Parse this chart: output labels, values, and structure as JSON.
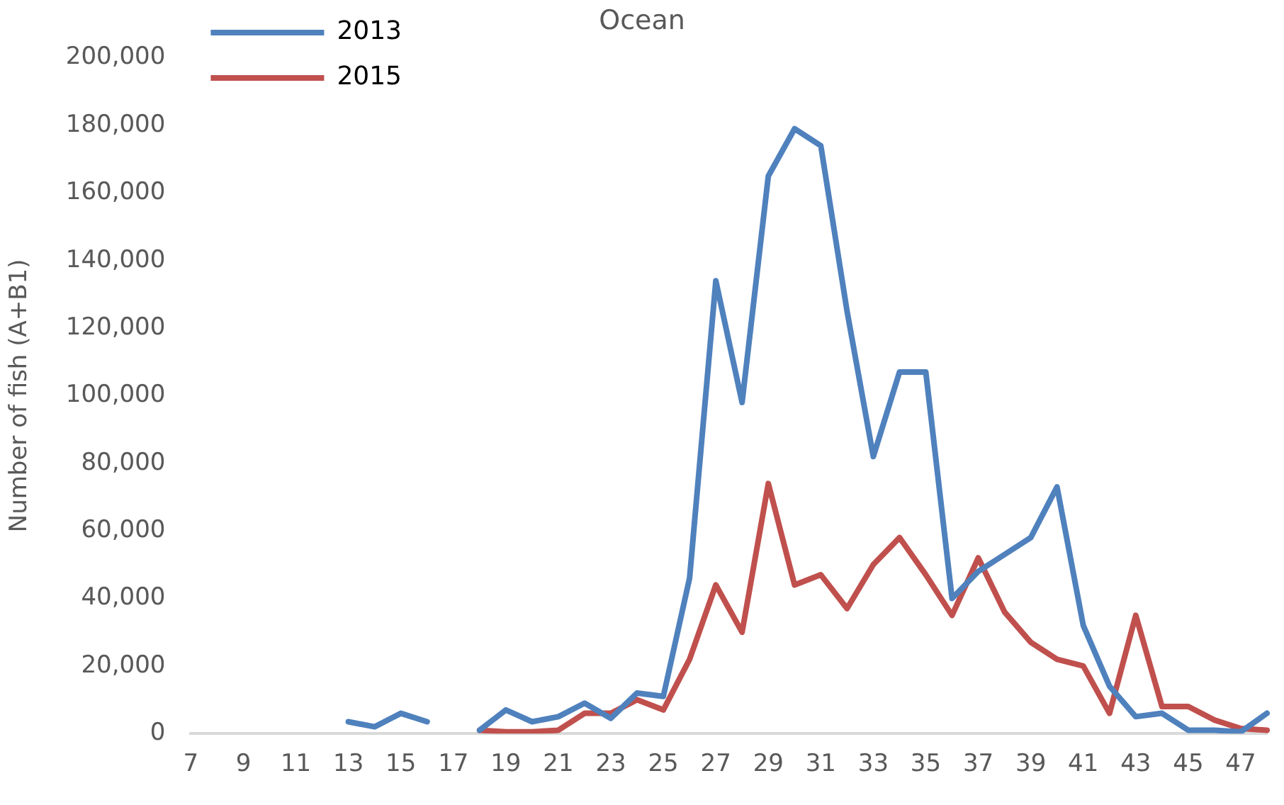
{
  "chart_data": {
    "type": "line",
    "title": "Ocean",
    "ylabel": "Number of fish (A+B1)",
    "categories": [
      "7",
      null,
      "9",
      null,
      "11",
      null,
      "13",
      null,
      "15",
      null,
      "17",
      null,
      "19",
      null,
      "21",
      null,
      "23",
      null,
      "25",
      null,
      "27",
      null,
      "29",
      null,
      "31",
      null,
      "33",
      null,
      "35",
      null,
      "37",
      null,
      "39",
      null,
      "41",
      null,
      "43",
      null,
      "45",
      null,
      "47",
      null
    ],
    "series": [
      {
        "name": "2013",
        "color": "#4f81bd",
        "values": [
          null,
          null,
          null,
          null,
          null,
          null,
          3500,
          2000,
          6000,
          3500,
          null,
          1000,
          7000,
          3500,
          5000,
          9000,
          4500,
          12000,
          11000,
          46000,
          134000,
          98000,
          165000,
          179000,
          174000,
          125000,
          82000,
          107000,
          107000,
          40000,
          48000,
          53000,
          58000,
          73000,
          32000,
          14000,
          5000,
          6000,
          1000,
          1000,
          500,
          6000
        ]
      },
      {
        "name": "2015",
        "color": "#c0504d",
        "values": [
          null,
          null,
          null,
          null,
          null,
          null,
          null,
          null,
          null,
          null,
          null,
          1000,
          500,
          500,
          1000,
          6000,
          6000,
          10000,
          7000,
          22000,
          44000,
          30000,
          74000,
          44000,
          47000,
          37000,
          50000,
          58000,
          47000,
          35000,
          52000,
          36000,
          27000,
          22000,
          20000,
          6000,
          35000,
          8000,
          8000,
          4000,
          1500,
          1000
        ]
      }
    ],
    "ylim": [
      0,
      200000
    ],
    "yticks": [
      0,
      {
        "value": 20000,
        "label": "20,000"
      },
      {
        "value": 40000,
        "label": "40,000"
      },
      {
        "value": 60000,
        "label": "60,000"
      },
      {
        "value": 80000,
        "label": "80,000"
      },
      {
        "value": 100000,
        "label": "100,000"
      },
      {
        "value": 120000,
        "label": "120,000"
      },
      {
        "value": 140000,
        "label": "140,000"
      },
      {
        "value": 160000,
        "label": "160,000"
      },
      {
        "value": 180000,
        "label": "180,000"
      },
      {
        "value": 200000,
        "label": "200,000"
      }
    ],
    "grid": false,
    "legend": "top left",
    "marker": "none",
    "line_style": "solid"
  }
}
